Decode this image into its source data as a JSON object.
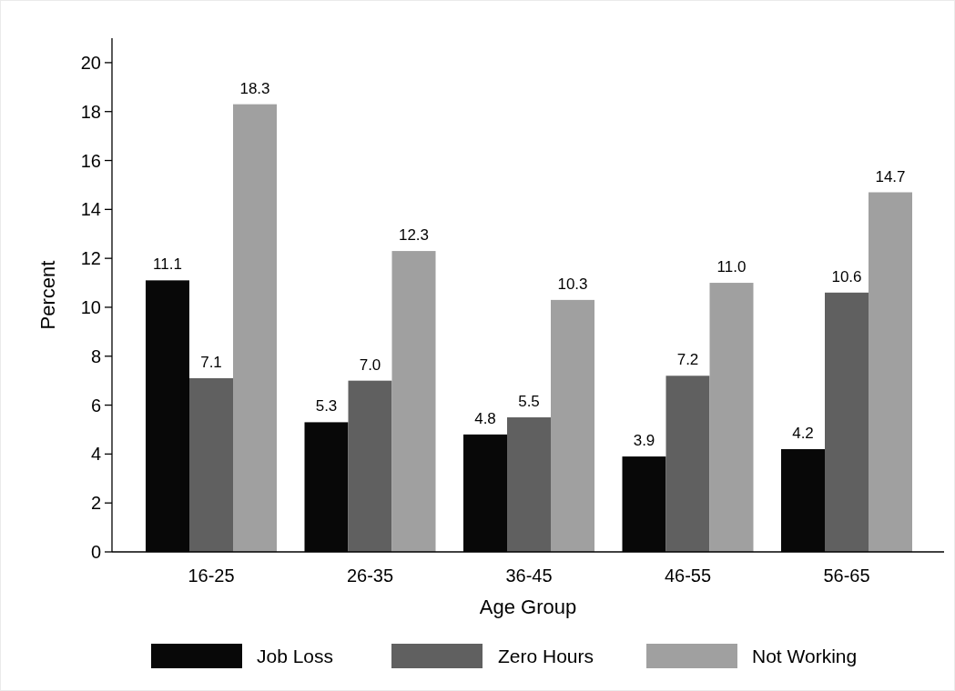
{
  "chart_data": {
    "type": "bar",
    "xlabel": "Age Group",
    "ylabel": "Percent",
    "categories": [
      "16-25",
      "26-35",
      "36-45",
      "46-55",
      "56-65"
    ],
    "series": [
      {
        "name": "Job Loss",
        "color": "#080808",
        "values": [
          11.1,
          5.3,
          4.8,
          3.9,
          4.2
        ],
        "value_labels": [
          "11.1",
          "5.3",
          "4.8",
          "3.9",
          "4.2"
        ]
      },
      {
        "name": "Zero Hours",
        "color": "#606060",
        "values": [
          7.1,
          7.0,
          5.5,
          7.2,
          10.6
        ],
        "value_labels": [
          "7.1",
          "7.0",
          "5.5",
          "7.2",
          "10.6"
        ]
      },
      {
        "name": "Not Working",
        "color": "#a0a0a0",
        "values": [
          18.3,
          12.3,
          10.3,
          11.0,
          14.7
        ],
        "value_labels": [
          "18.3",
          "12.3",
          "10.3",
          "11.0",
          "14.7"
        ]
      }
    ],
    "ylim": [
      0,
      21
    ],
    "yticks": [
      0,
      2,
      4,
      6,
      8,
      10,
      12,
      14,
      16,
      18,
      20
    ],
    "legend": "bottom",
    "grid": false
  }
}
